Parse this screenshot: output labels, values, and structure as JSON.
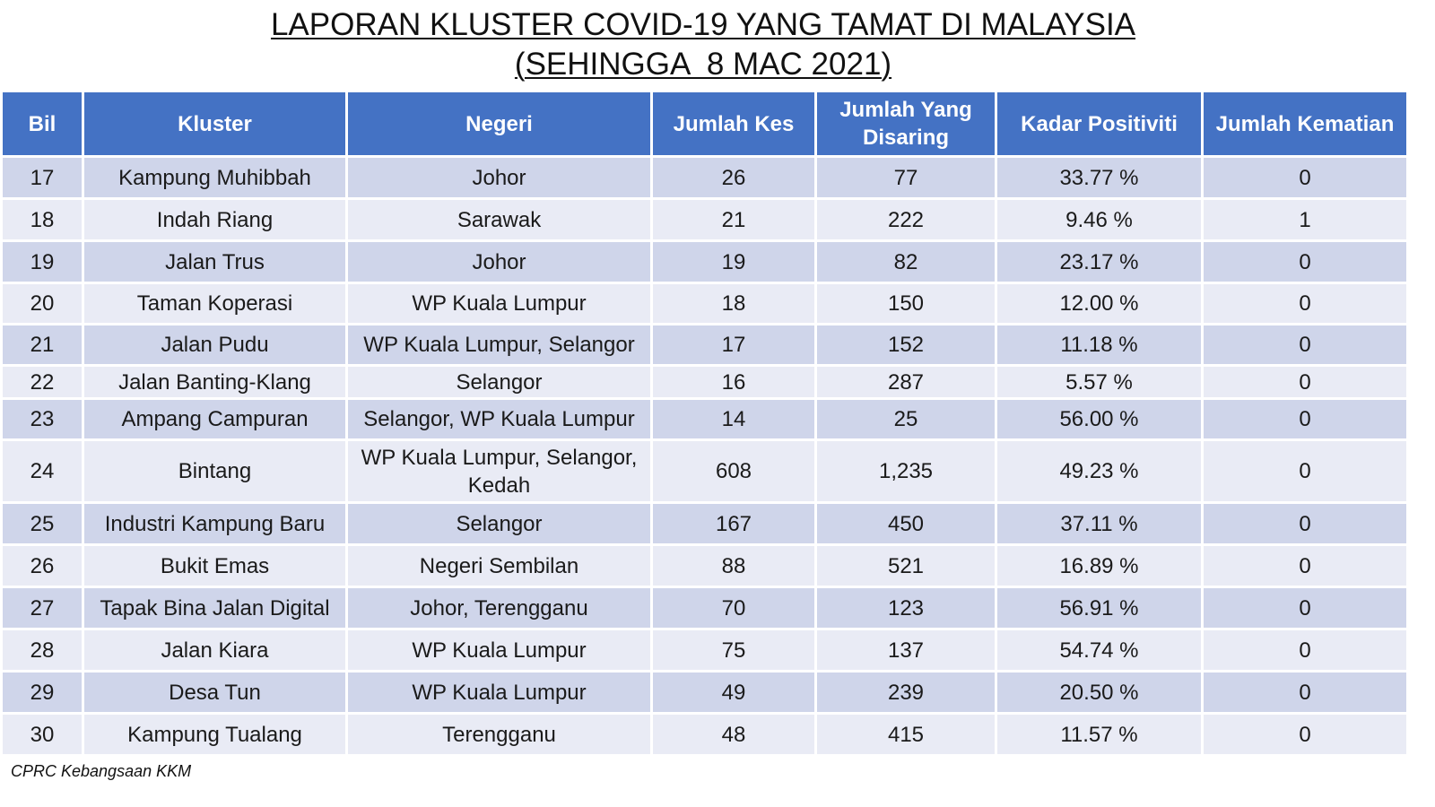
{
  "title": {
    "line1": "LAPORAN KLUSTER COVID-19 YANG TAMAT DI MALAYSIA",
    "line2": "(SEHINGGA  8 MAC 2021)"
  },
  "table": {
    "headers": [
      "Bil",
      "Kluster",
      "Negeri",
      "Jumlah Kes",
      "Jumlah Yang Disaring",
      "Kadar Positiviti",
      "Jumlah Kematian"
    ],
    "rows": [
      [
        "17",
        "Kampung Muhibbah",
        "Johor",
        "26",
        "77",
        "33.77 %",
        "0"
      ],
      [
        "18",
        "Indah Riang",
        "Sarawak",
        "21",
        "222",
        "9.46 %",
        "1"
      ],
      [
        "19",
        "Jalan Trus",
        "Johor",
        "19",
        "82",
        "23.17 %",
        "0"
      ],
      [
        "20",
        "Taman Koperasi",
        "WP Kuala Lumpur",
        "18",
        "150",
        "12.00 %",
        "0"
      ],
      [
        "21",
        "Jalan Pudu",
        "WP Kuala Lumpur, Selangor",
        "17",
        "152",
        "11.18 %",
        "0"
      ],
      [
        "22",
        "Jalan Banting-Klang",
        "Selangor",
        "16",
        "287",
        "5.57 %",
        "0"
      ],
      [
        "23",
        "Ampang Campuran",
        "Selangor, WP Kuala Lumpur",
        "14",
        "25",
        "56.00 %",
        "0"
      ],
      [
        "24",
        "Bintang",
        "WP Kuala Lumpur, Selangor, Kedah",
        "608",
        "1,235",
        "49.23 %",
        "0"
      ],
      [
        "25",
        "Industri Kampung Baru",
        "Selangor",
        "167",
        "450",
        "37.11 %",
        "0"
      ],
      [
        "26",
        "Bukit Emas",
        "Negeri Sembilan",
        "88",
        "521",
        "16.89 %",
        "0"
      ],
      [
        "27",
        "Tapak Bina Jalan Digital",
        "Johor, Terengganu",
        "70",
        "123",
        "56.91 %",
        "0"
      ],
      [
        "28",
        "Jalan Kiara",
        "WP Kuala Lumpur",
        "75",
        "137",
        "54.74 %",
        "0"
      ],
      [
        "29",
        "Desa Tun",
        "WP Kuala Lumpur",
        "49",
        "239",
        "20.50 %",
        "0"
      ],
      [
        "30",
        "Kampung Tualang",
        "Terengganu",
        "48",
        "415",
        "11.57 %",
        "0"
      ]
    ]
  },
  "footer": "CPRC Kebangsaan KKM",
  "colors": {
    "header_bg": "#4472c4",
    "row_dark": "#cfd5ea",
    "row_light": "#e9ebf5"
  }
}
